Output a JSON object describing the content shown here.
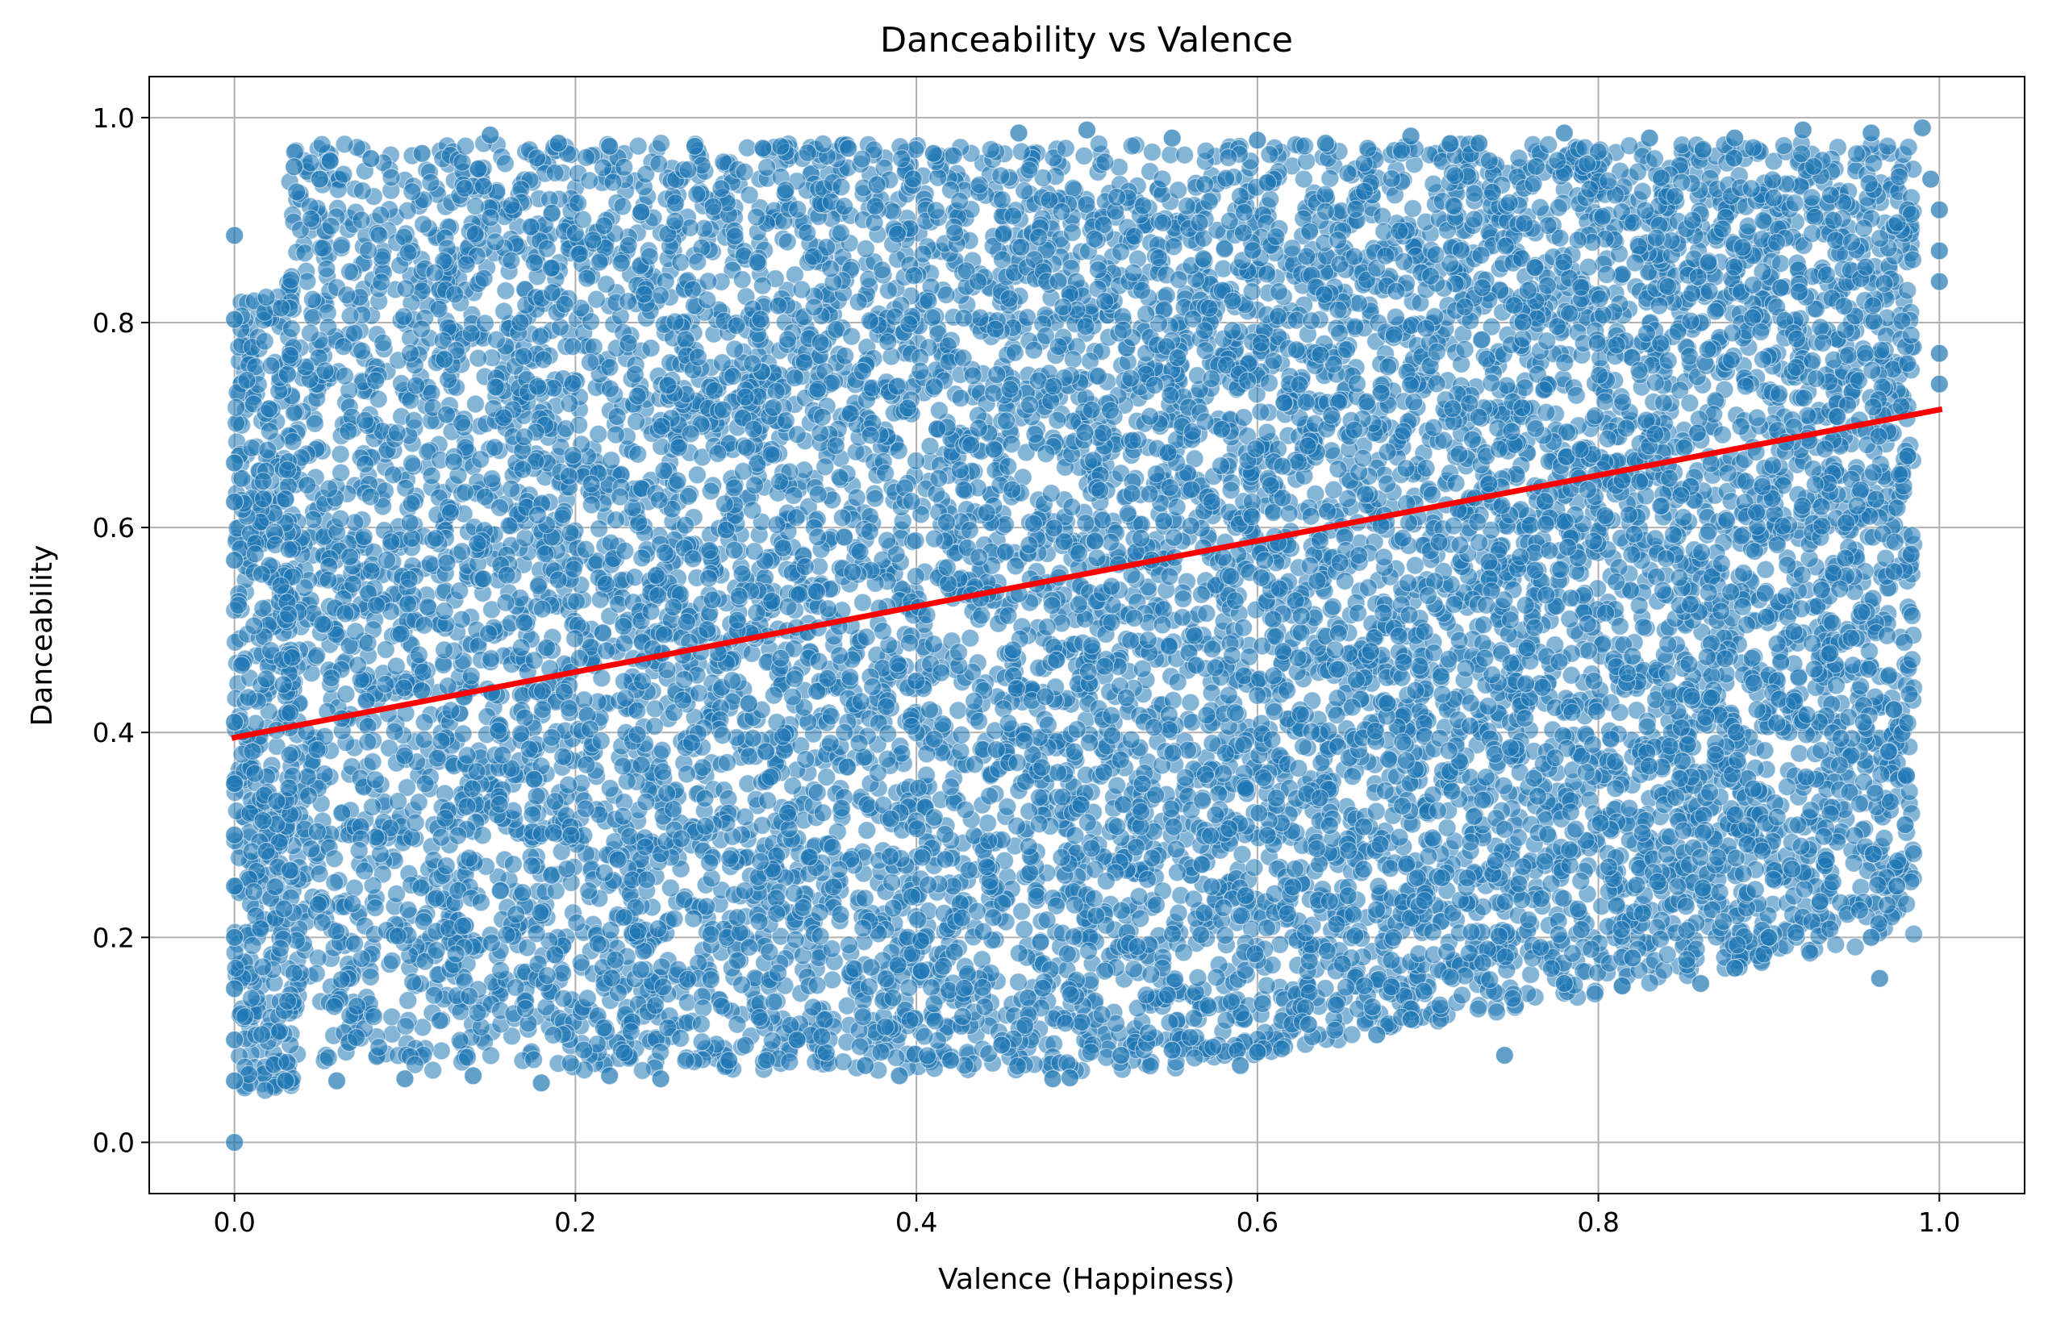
{
  "chart_data": {
    "type": "scatter",
    "title": "Danceability vs Valence",
    "xlabel": "Valence (Happiness)",
    "ylabel": "Danceability",
    "xlim": [
      -0.05,
      1.05
    ],
    "ylim": [
      -0.05,
      1.04
    ],
    "xticks": [
      0.0,
      0.2,
      0.4,
      0.6,
      0.8,
      1.0
    ],
    "xtick_labels": [
      "0.0",
      "0.2",
      "0.4",
      "0.6",
      "0.8",
      "1.0"
    ],
    "yticks": [
      0.0,
      0.2,
      0.4,
      0.6,
      0.8,
      1.0
    ],
    "ytick_labels": [
      "0.0",
      "0.2",
      "0.4",
      "0.6",
      "0.8",
      "1.0"
    ],
    "grid": true,
    "legend": "none",
    "series": [
      {
        "type": "scatter",
        "color": "#1f77b4",
        "alpha": 0.55,
        "points": [
          [
            0.0,
            0.885
          ],
          [
            0.0,
            0.803
          ],
          [
            0.0,
            0.663
          ],
          [
            0.0,
            0.625
          ],
          [
            0.0,
            0.568
          ],
          [
            0.0,
            0.41
          ],
          [
            0.0,
            0.35
          ],
          [
            0.0,
            0.3
          ],
          [
            0.0,
            0.25
          ],
          [
            0.0,
            0.2
          ],
          [
            0.0,
            0.15
          ],
          [
            0.0,
            0.1
          ],
          [
            0.0,
            0.06
          ],
          [
            0.0,
            0.0
          ],
          [
            0.035,
            0.952
          ],
          [
            0.05,
            0.94
          ],
          [
            0.08,
            0.96
          ],
          [
            0.11,
            0.965
          ],
          [
            0.15,
            0.983
          ],
          [
            0.19,
            0.975
          ],
          [
            0.22,
            0.972
          ],
          [
            0.27,
            0.972
          ],
          [
            0.31,
            0.97
          ],
          [
            0.36,
            0.97
          ],
          [
            0.41,
            0.965
          ],
          [
            0.46,
            0.985
          ],
          [
            0.5,
            0.988
          ],
          [
            0.55,
            0.98
          ],
          [
            0.6,
            0.978
          ],
          [
            0.64,
            0.975
          ],
          [
            0.69,
            0.982
          ],
          [
            0.73,
            0.975
          ],
          [
            0.78,
            0.985
          ],
          [
            0.83,
            0.98
          ],
          [
            0.88,
            0.98
          ],
          [
            0.92,
            0.988
          ],
          [
            0.96,
            0.985
          ],
          [
            0.99,
            0.99
          ],
          [
            0.03,
            0.06
          ],
          [
            0.06,
            0.06
          ],
          [
            0.1,
            0.062
          ],
          [
            0.14,
            0.065
          ],
          [
            0.18,
            0.058
          ],
          [
            0.22,
            0.065
          ],
          [
            0.25,
            0.062
          ],
          [
            0.29,
            0.08
          ],
          [
            0.33,
            0.1
          ],
          [
            0.37,
            0.075
          ],
          [
            0.39,
            0.065
          ],
          [
            0.42,
            0.08
          ],
          [
            0.45,
            0.095
          ],
          [
            0.48,
            0.062
          ],
          [
            0.49,
            0.063
          ],
          [
            0.52,
            0.085
          ],
          [
            0.55,
            0.09
          ],
          [
            0.59,
            0.075
          ],
          [
            0.6,
            0.088
          ],
          [
            0.63,
            0.115
          ],
          [
            0.67,
            0.105
          ],
          [
            0.69,
            0.12
          ],
          [
            0.745,
            0.085
          ],
          [
            0.78,
            0.155
          ],
          [
            0.82,
            0.18
          ],
          [
            0.86,
            0.155
          ],
          [
            0.88,
            0.17
          ],
          [
            0.9,
            0.2
          ],
          [
            0.93,
            0.235
          ],
          [
            0.965,
            0.16
          ],
          [
            0.96,
            0.2
          ],
          [
            0.975,
            0.25
          ],
          [
            0.98,
            0.31
          ],
          [
            0.995,
            0.94
          ],
          [
            1.0,
            0.91
          ],
          [
            1.0,
            0.87
          ],
          [
            1.0,
            0.84
          ],
          [
            1.0,
            0.77
          ],
          [
            1.0,
            0.74
          ]
        ]
      },
      {
        "type": "line",
        "name": "regression",
        "color": "#ff0000",
        "x": [
          0.0,
          1.0
        ],
        "y": [
          0.395,
          0.715
        ]
      }
    ]
  }
}
